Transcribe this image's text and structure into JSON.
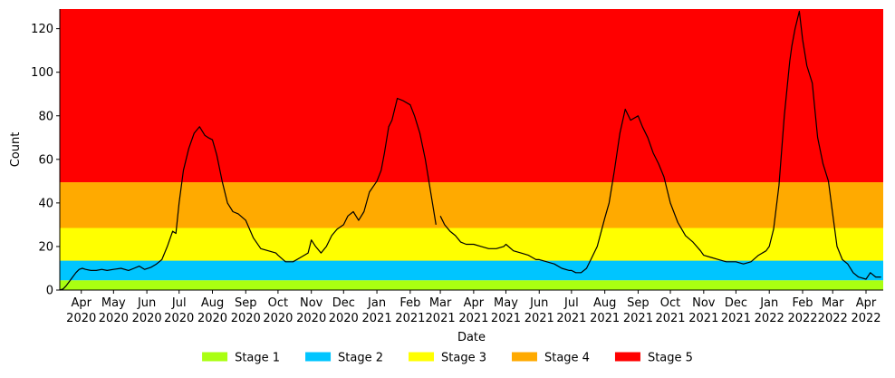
{
  "chart_data": {
    "type": "line",
    "xlabel": "Date",
    "ylabel": "Count",
    "ylim": [
      0,
      129
    ],
    "xlim": [
      "2020-03-12",
      "2022-04-17"
    ],
    "yticks": [
      0,
      20,
      40,
      60,
      80,
      100,
      120
    ],
    "xticks": [
      {
        "date": "2020-04-01",
        "month": "Apr",
        "year": "2020"
      },
      {
        "date": "2020-05-01",
        "month": "May",
        "year": "2020"
      },
      {
        "date": "2020-06-01",
        "month": "Jun",
        "year": "2020"
      },
      {
        "date": "2020-07-01",
        "month": "Jul",
        "year": "2020"
      },
      {
        "date": "2020-08-01",
        "month": "Aug",
        "year": "2020"
      },
      {
        "date": "2020-09-01",
        "month": "Sep",
        "year": "2020"
      },
      {
        "date": "2020-10-01",
        "month": "Oct",
        "year": "2020"
      },
      {
        "date": "2020-11-01",
        "month": "Nov",
        "year": "2020"
      },
      {
        "date": "2020-12-01",
        "month": "Dec",
        "year": "2020"
      },
      {
        "date": "2021-01-01",
        "month": "Jan",
        "year": "2021"
      },
      {
        "date": "2021-02-01",
        "month": "Feb",
        "year": "2021"
      },
      {
        "date": "2021-03-01",
        "month": "Mar",
        "year": "2021"
      },
      {
        "date": "2021-04-01",
        "month": "Apr",
        "year": "2021"
      },
      {
        "date": "2021-05-01",
        "month": "May",
        "year": "2021"
      },
      {
        "date": "2021-06-01",
        "month": "Jun",
        "year": "2021"
      },
      {
        "date": "2021-07-01",
        "month": "Jul",
        "year": "2021"
      },
      {
        "date": "2021-08-01",
        "month": "Aug",
        "year": "2021"
      },
      {
        "date": "2021-09-01",
        "month": "Sep",
        "year": "2021"
      },
      {
        "date": "2021-10-01",
        "month": "Oct",
        "year": "2021"
      },
      {
        "date": "2021-11-01",
        "month": "Nov",
        "year": "2021"
      },
      {
        "date": "2021-12-01",
        "month": "Dec",
        "year": "2021"
      },
      {
        "date": "2022-01-01",
        "month": "Jan",
        "year": "2022"
      },
      {
        "date": "2022-02-01",
        "month": "Feb",
        "year": "2022"
      },
      {
        "date": "2022-03-01",
        "month": "Mar",
        "year": "2022"
      },
      {
        "date": "2022-04-01",
        "month": "Apr",
        "year": "2022"
      }
    ],
    "bands": [
      {
        "name": "Stage 1",
        "from": 0,
        "to": 4.5,
        "color": "#aaff11"
      },
      {
        "name": "Stage 2",
        "from": 4.5,
        "to": 13.5,
        "color": "#00c5ff"
      },
      {
        "name": "Stage 3",
        "from": 13.5,
        "to": 28.5,
        "color": "#ffff00"
      },
      {
        "name": "Stage 4",
        "from": 28.5,
        "to": 49.5,
        "color": "#ffaa00"
      },
      {
        "name": "Stage 5",
        "from": 49.5,
        "to": 129,
        "color": "#ff0000"
      }
    ],
    "legend": {
      "placement": "bottom-center"
    },
    "grid": false,
    "series": [
      {
        "color": "#000000",
        "segments": [
          {
            "x": [
              "2020-03-12",
              "2020-03-15",
              "2020-03-18",
              "2020-03-21",
              "2020-03-24",
              "2020-03-27",
              "2020-03-30",
              "2020-04-02",
              "2020-04-05",
              "2020-04-10",
              "2020-04-15",
              "2020-04-20",
              "2020-04-25",
              "2020-05-01",
              "2020-05-08",
              "2020-05-15",
              "2020-05-20",
              "2020-05-25",
              "2020-05-30",
              "2020-06-05",
              "2020-06-10",
              "2020-06-15",
              "2020-06-20",
              "2020-06-25",
              "2020-06-28",
              "2020-07-01",
              "2020-07-05",
              "2020-07-10",
              "2020-07-15",
              "2020-07-20",
              "2020-07-25",
              "2020-07-28",
              "2020-08-01",
              "2020-08-05",
              "2020-08-10",
              "2020-08-15",
              "2020-08-20",
              "2020-08-25",
              "2020-09-01",
              "2020-09-08",
              "2020-09-15",
              "2020-09-22",
              "2020-09-29",
              "2020-10-01",
              "2020-10-08",
              "2020-10-15",
              "2020-10-22",
              "2020-10-29",
              "2020-11-01",
              "2020-11-05",
              "2020-11-10",
              "2020-11-15",
              "2020-11-20",
              "2020-11-25",
              "2020-12-01",
              "2020-12-05",
              "2020-12-10",
              "2020-12-15",
              "2020-12-20",
              "2020-12-25",
              "2021-01-01",
              "2021-01-05",
              "2021-01-08",
              "2021-01-12",
              "2021-01-15",
              "2021-01-20",
              "2021-01-25",
              "2021-02-01",
              "2021-02-05",
              "2021-02-10",
              "2021-02-15",
              "2021-02-20",
              "2021-02-25"
            ],
            "y": [
              0,
              0.5,
              2,
              4,
              6,
              8,
              9.5,
              10,
              9.5,
              9,
              9,
              9.5,
              9,
              9.5,
              10,
              9,
              10,
              11,
              9.5,
              10.5,
              12,
              14,
              20,
              27,
              26,
              40,
              55,
              65,
              72,
              75,
              71,
              70,
              69,
              62,
              50,
              40,
              36,
              35,
              32,
              24,
              19,
              18,
              17,
              16,
              13,
              13,
              15,
              17,
              23,
              20,
              17,
              20,
              25,
              28,
              30,
              34,
              36,
              32,
              36,
              45,
              50,
              55,
              63,
              75,
              78,
              88,
              87,
              85,
              80,
              72,
              60,
              45,
              30
            ]
          },
          {
            "x": [
              "2021-03-01",
              "2021-03-05",
              "2021-03-10",
              "2021-03-15",
              "2021-03-20",
              "2021-03-25",
              "2021-04-01",
              "2021-04-08",
              "2021-04-15",
              "2021-04-22",
              "2021-04-29",
              "2021-05-01",
              "2021-05-08",
              "2021-05-15",
              "2021-05-22",
              "2021-05-29",
              "2021-06-01",
              "2021-06-08",
              "2021-06-15",
              "2021-06-22",
              "2021-06-29",
              "2021-07-01",
              "2021-07-05",
              "2021-07-10",
              "2021-07-15",
              "2021-07-20",
              "2021-07-25",
              "2021-08-01",
              "2021-08-05",
              "2021-08-10",
              "2021-08-15",
              "2021-08-20",
              "2021-08-25",
              "2021-09-01",
              "2021-09-05",
              "2021-09-10",
              "2021-09-15",
              "2021-09-20",
              "2021-09-25",
              "2021-10-01",
              "2021-10-08",
              "2021-10-15",
              "2021-10-22",
              "2021-10-29",
              "2021-11-01",
              "2021-11-08",
              "2021-11-15",
              "2021-11-22",
              "2021-11-29",
              "2021-12-01",
              "2021-12-08",
              "2021-12-15",
              "2021-12-22",
              "2021-12-29",
              "2022-01-01",
              "2022-01-05",
              "2022-01-10",
              "2022-01-15",
              "2022-01-20",
              "2022-01-22",
              "2022-01-25",
              "2022-01-29",
              "2022-02-01",
              "2022-02-05",
              "2022-02-10",
              "2022-02-15",
              "2022-02-20",
              "2022-02-25",
              "2022-03-01",
              "2022-03-05",
              "2022-03-10",
              "2022-03-15",
              "2022-03-20",
              "2022-03-25",
              "2022-04-01",
              "2022-04-05",
              "2022-04-10",
              "2022-04-15"
            ],
            "y": [
              34,
              30,
              27,
              25,
              22,
              21,
              21,
              20,
              19,
              19,
              20,
              21,
              18,
              17,
              16,
              14,
              14,
              13,
              12,
              10,
              9,
              9,
              8,
              8,
              10,
              15,
              20,
              33,
              40,
              55,
              72,
              83,
              78,
              80,
              75,
              70,
              63,
              58,
              52,
              40,
              31,
              25,
              22,
              18,
              16,
              15,
              14,
              13,
              13,
              13,
              12,
              13,
              16,
              18,
              20,
              28,
              48,
              80,
              105,
              112,
              120,
              128,
              115,
              103,
              95,
              70,
              58,
              50,
              35,
              20,
              14,
              12,
              8,
              6,
              5,
              8,
              6,
              6
            ]
          }
        ]
      }
    ]
  }
}
